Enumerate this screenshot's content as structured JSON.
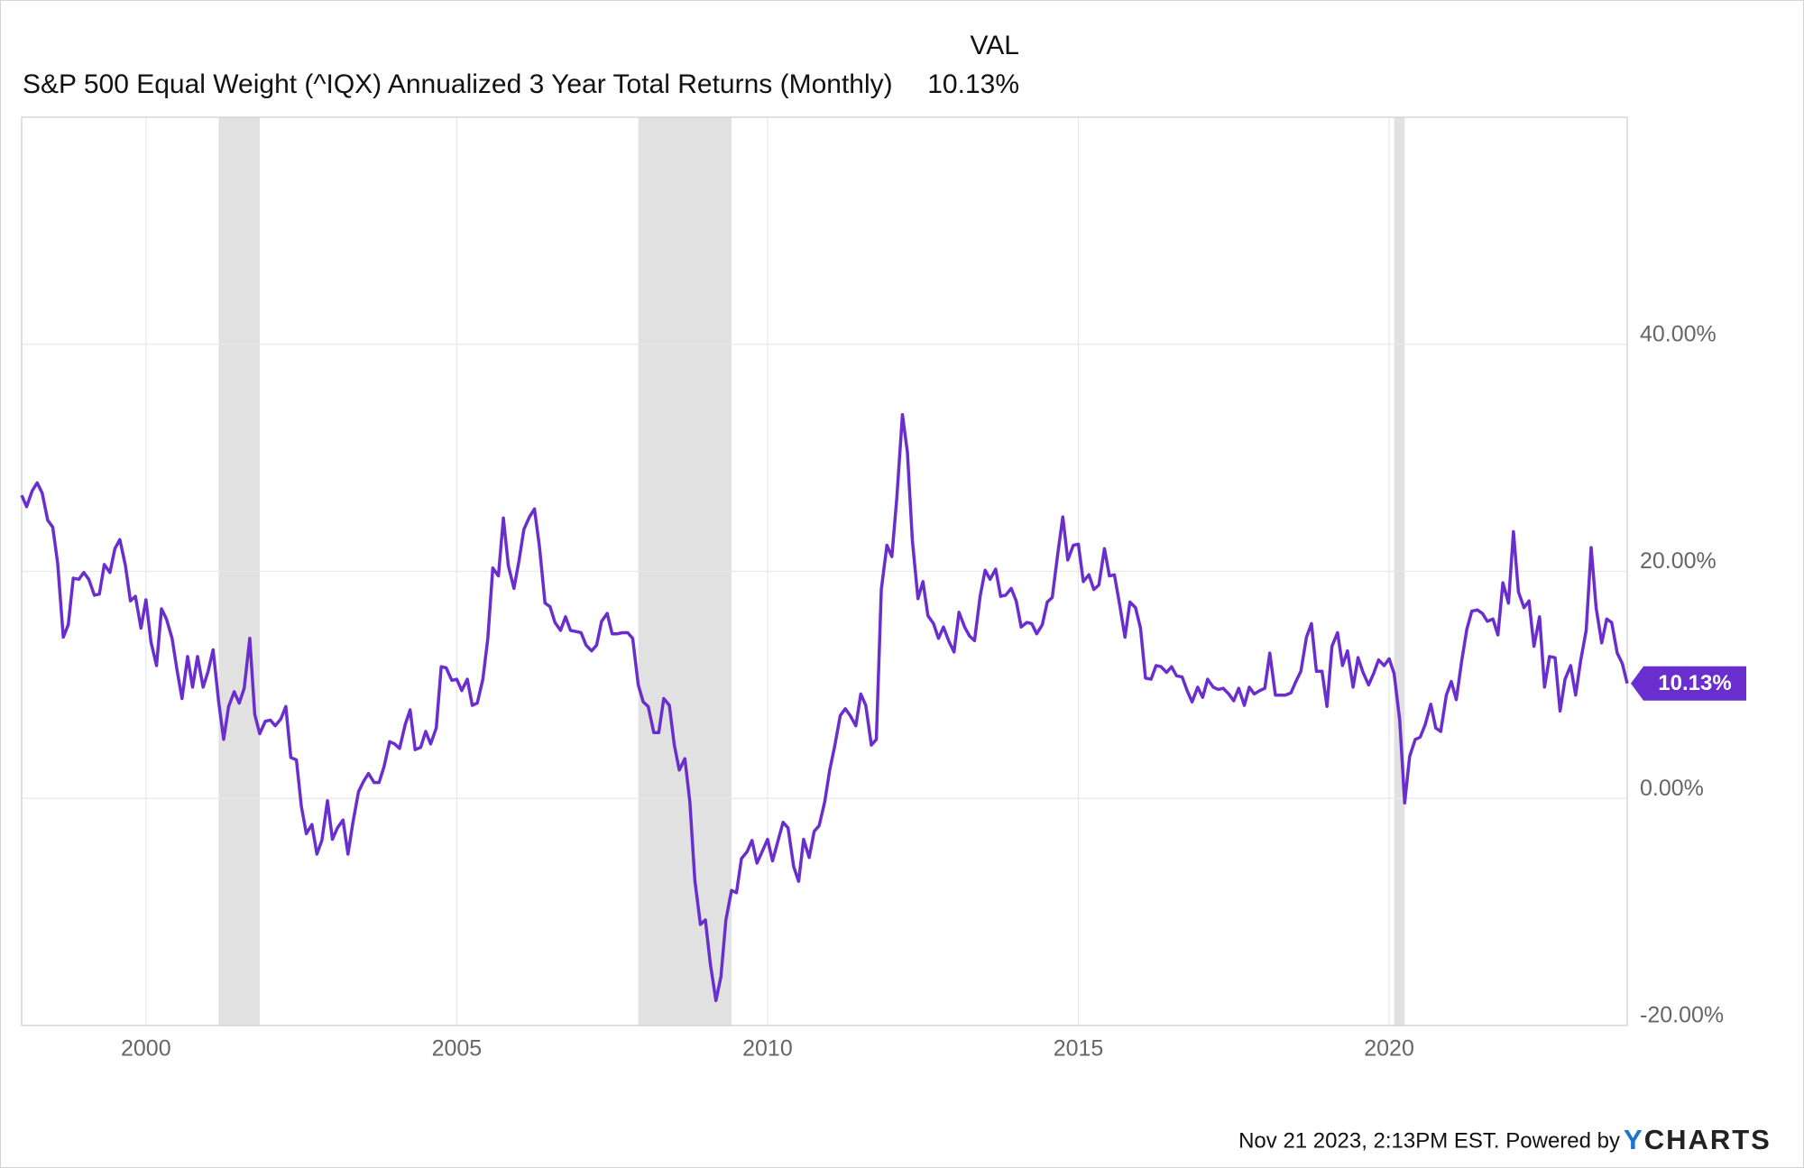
{
  "chart_data": {
    "type": "line",
    "legend_header": "VAL",
    "current_value_label": "10.13%",
    "footer": "Nov 21 2023, 2:13PM EST. Powered by",
    "brand_mark": "Y",
    "brand": "CHARTS",
    "xlim": [
      1998.0,
      2023.83
    ],
    "xticks": [
      2000,
      2005,
      2010,
      2015,
      2020
    ],
    "ylim": [
      -20,
      60
    ],
    "yticks": [
      {
        "value": -20,
        "label": "-20.00%"
      },
      {
        "value": 0,
        "label": "0.00%"
      },
      {
        "value": 20,
        "label": "20.00%"
      },
      {
        "value": 40,
        "label": "40.00%"
      }
    ],
    "grid": true,
    "shaded_regions": [
      [
        2001.17,
        2001.83
      ],
      [
        2007.92,
        2009.42
      ],
      [
        2020.08,
        2020.25
      ]
    ],
    "shade_color": "#e1e1e1",
    "x": [
      1998,
      1998.08,
      1998.17,
      1998.25,
      1998.33,
      1998.42,
      1998.5,
      1998.58,
      1998.67,
      1998.75,
      1998.83,
      1998.92,
      1999,
      1999.08,
      1999.17,
      1999.25,
      1999.33,
      1999.42,
      1999.5,
      1999.58,
      1999.67,
      1999.75,
      1999.83,
      1999.92,
      2000,
      2000.08,
      2000.17,
      2000.25,
      2000.33,
      2000.42,
      2000.5,
      2000.58,
      2000.67,
      2000.75,
      2000.83,
      2000.92,
      2001,
      2001.08,
      2001.17,
      2001.25,
      2001.33,
      2001.42,
      2001.5,
      2001.58,
      2001.67,
      2001.75,
      2001.83,
      2001.92,
      2002,
      2002.08,
      2002.17,
      2002.25,
      2002.33,
      2002.42,
      2002.5,
      2002.58,
      2002.67,
      2002.75,
      2002.83,
      2002.92,
      2003,
      2003.08,
      2003.17,
      2003.25,
      2003.33,
      2003.42,
      2003.5,
      2003.58,
      2003.67,
      2003.75,
      2003.83,
      2003.92,
      2004,
      2004.08,
      2004.17,
      2004.25,
      2004.33,
      2004.42,
      2004.5,
      2004.58,
      2004.67,
      2004.75,
      2004.83,
      2004.92,
      2005,
      2005.08,
      2005.17,
      2005.25,
      2005.33,
      2005.42,
      2005.5,
      2005.58,
      2005.67,
      2005.75,
      2005.83,
      2005.92,
      2006,
      2006.08,
      2006.17,
      2006.25,
      2006.33,
      2006.42,
      2006.5,
      2006.58,
      2006.67,
      2006.75,
      2006.83,
      2006.92,
      2007,
      2007.08,
      2007.17,
      2007.25,
      2007.33,
      2007.42,
      2007.5,
      2007.58,
      2007.67,
      2007.75,
      2007.83,
      2007.92,
      2008,
      2008.08,
      2008.17,
      2008.25,
      2008.33,
      2008.42,
      2008.5,
      2008.58,
      2008.67,
      2008.75,
      2008.83,
      2008.92,
      2009,
      2009.08,
      2009.17,
      2009.25,
      2009.33,
      2009.42,
      2009.5,
      2009.58,
      2009.67,
      2009.75,
      2009.83,
      2009.92,
      2010,
      2010.08,
      2010.17,
      2010.25,
      2010.33,
      2010.42,
      2010.5,
      2010.58,
      2010.67,
      2010.75,
      2010.83,
      2010.92,
      2011,
      2011.08,
      2011.17,
      2011.25,
      2011.33,
      2011.42,
      2011.5,
      2011.58,
      2011.67,
      2011.75,
      2011.83,
      2011.92,
      2012,
      2012.08,
      2012.17,
      2012.25,
      2012.33,
      2012.42,
      2012.5,
      2012.58,
      2012.67,
      2012.75,
      2012.83,
      2012.92,
      2013,
      2013.08,
      2013.17,
      2013.25,
      2013.33,
      2013.42,
      2013.5,
      2013.58,
      2013.67,
      2013.75,
      2013.83,
      2013.92,
      2014,
      2014.08,
      2014.17,
      2014.25,
      2014.33,
      2014.42,
      2014.5,
      2014.58,
      2014.67,
      2014.75,
      2014.83,
      2014.92,
      2015,
      2015.08,
      2015.17,
      2015.25,
      2015.33,
      2015.42,
      2015.5,
      2015.58,
      2015.67,
      2015.75,
      2015.83,
      2015.92,
      2016,
      2016.08,
      2016.17,
      2016.25,
      2016.33,
      2016.42,
      2016.5,
      2016.58,
      2016.67,
      2016.75,
      2016.83,
      2016.92,
      2017,
      2017.08,
      2017.17,
      2017.25,
      2017.33,
      2017.42,
      2017.5,
      2017.58,
      2017.67,
      2017.75,
      2017.83,
      2017.92,
      2018,
      2018.08,
      2018.17,
      2018.25,
      2018.33,
      2018.42,
      2018.5,
      2018.58,
      2018.67,
      2018.75,
      2018.83,
      2018.92,
      2019,
      2019.08,
      2019.17,
      2019.25,
      2019.33,
      2019.42,
      2019.5,
      2019.58,
      2019.67,
      2019.75,
      2019.83,
      2019.92,
      2020,
      2020.08,
      2020.17,
      2020.25,
      2020.33,
      2020.42,
      2020.5,
      2020.58,
      2020.67,
      2020.75,
      2020.83,
      2020.92,
      2021,
      2021.08,
      2021.17,
      2021.25,
      2021.33,
      2021.42,
      2021.5,
      2021.58,
      2021.67,
      2021.75,
      2021.83,
      2021.92,
      2022,
      2022.08,
      2022.17,
      2022.25,
      2022.33,
      2022.42,
      2022.5,
      2022.58,
      2022.67,
      2022.75,
      2022.83,
      2022.92,
      2023,
      2023.08,
      2023.17,
      2023.25,
      2023.33,
      2023.42,
      2023.5,
      2023.58,
      2023.67,
      2023.75,
      2023.83
    ],
    "series": [
      {
        "name": "S&P 500 Equal Weight (^IQX) Annualized 3 Year Total Returns (Monthly)",
        "color": "#6a2ecf",
        "values": [
          26.7,
          25.7,
          27.1,
          27.8,
          26.9,
          24.5,
          23.9,
          20.7,
          14.2,
          15.3,
          19.4,
          19.3,
          19.9,
          19.3,
          17.9,
          18.0,
          20.6,
          19.9,
          22.0,
          22.8,
          20.5,
          17.4,
          17.8,
          15.0,
          17.5,
          13.8,
          11.7,
          16.7,
          15.8,
          14.1,
          11.3,
          8.8,
          12.5,
          9.8,
          12.5,
          9.8,
          11.2,
          13.1,
          8.5,
          5.2,
          8.1,
          9.4,
          8.4,
          9.7,
          14.1,
          7.4,
          5.7,
          6.8,
          6.9,
          6.4,
          7.0,
          8.1,
          3.6,
          3.4,
          -0.7,
          -3.1,
          -2.3,
          -4.9,
          -3.7,
          -0.2,
          -3.6,
          -2.6,
          -1.9,
          -4.9,
          -2.1,
          0.6,
          1.5,
          2.2,
          1.4,
          1.4,
          2.8,
          5.0,
          4.8,
          4.4,
          6.5,
          7.8,
          4.3,
          4.5,
          5.9,
          4.8,
          6.2,
          11.6,
          11.5,
          10.4,
          10.5,
          9.5,
          10.5,
          8.2,
          8.4,
          10.5,
          14.1,
          20.3,
          19.6,
          24.7,
          20.5,
          18.5,
          20.9,
          23.7,
          24.8,
          25.5,
          22.2,
          17.2,
          16.9,
          15.5,
          14.8,
          16.0,
          14.8,
          14.7,
          14.6,
          13.5,
          13.0,
          13.5,
          15.6,
          16.3,
          14.5,
          14.5,
          14.6,
          14.6,
          14.1,
          10.0,
          8.5,
          8.1,
          5.8,
          5.8,
          8.8,
          8.2,
          4.7,
          2.5,
          3.5,
          -0.3,
          -7.2,
          -11.1,
          -10.7,
          -14.6,
          -17.8,
          -15.7,
          -10.7,
          -8.1,
          -8.3,
          -5.3,
          -4.7,
          -3.7,
          -5.7,
          -4.6,
          -3.6,
          -5.5,
          -3.7,
          -2.1,
          -2.6,
          -6.0,
          -7.3,
          -3.6,
          -5.2,
          -2.9,
          -2.4,
          -0.3,
          2.5,
          4.6,
          7.3,
          7.9,
          7.3,
          6.4,
          9.2,
          8.2,
          4.7,
          5.2,
          18.4,
          22.3,
          21.3,
          26.5,
          33.8,
          30.5,
          22.7,
          17.6,
          19.1,
          16.1,
          15.4,
          14.1,
          15.1,
          13.8,
          12.9,
          16.4,
          15.1,
          14.3,
          13.9,
          17.8,
          20.1,
          19.3,
          20.2,
          17.8,
          17.9,
          18.5,
          17.4,
          15.1,
          15.5,
          15.4,
          14.5,
          15.3,
          17.3,
          17.7,
          21.6,
          24.8,
          21.0,
          22.3,
          22.4,
          19.1,
          19.7,
          18.4,
          18.8,
          22.0,
          19.6,
          19.7,
          16.9,
          14.2,
          17.3,
          16.8,
          15.0,
          10.6,
          10.5,
          11.7,
          11.6,
          11.1,
          11.6,
          10.8,
          10.7,
          9.5,
          8.5,
          9.8,
          8.9,
          10.5,
          9.8,
          9.6,
          9.7,
          9.2,
          8.6,
          9.7,
          8.2,
          9.8,
          9.2,
          9.5,
          9.7,
          12.8,
          9.1,
          9.1,
          9.1,
          9.3,
          10.3,
          11.2,
          14.2,
          15.4,
          11.2,
          11.2,
          8.1,
          13.4,
          14.6,
          11.7,
          13.0,
          9.8,
          12.4,
          11.1,
          10.0,
          11.0,
          12.2,
          11.7,
          12.3,
          11.0,
          6.9,
          -0.4,
          3.7,
          5.2,
          5.4,
          6.5,
          8.3,
          6.2,
          5.9,
          9.1,
          10.3,
          8.7,
          12.2,
          14.9,
          16.5,
          16.6,
          16.3,
          15.6,
          15.8,
          14.4,
          19.0,
          17.2,
          23.5,
          18.2,
          16.8,
          17.4,
          13.4,
          16.0,
          9.8,
          12.5,
          12.4,
          7.7,
          10.5,
          11.7,
          9.1,
          12.1,
          14.8,
          22.1,
          16.8,
          13.7,
          15.8,
          15.5,
          12.8,
          11.9,
          10.13
        ]
      }
    ]
  }
}
